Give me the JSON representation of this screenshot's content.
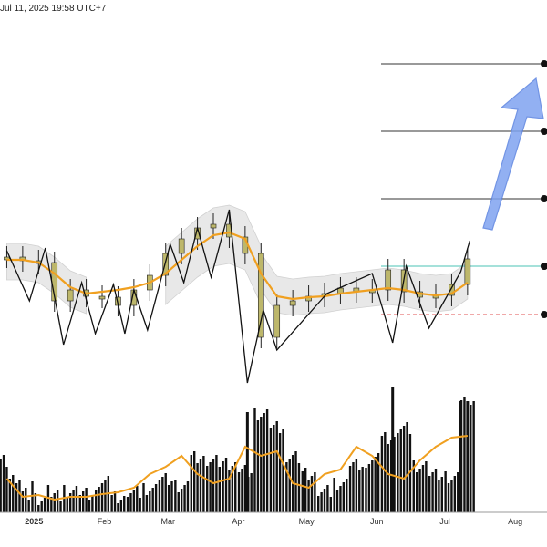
{
  "header": {
    "timestamp": "Jul 11, 2025 19:58 UTC+7"
  },
  "chart_data": {
    "type": "candlestick",
    "title": "",
    "x_axis": {
      "labels": [
        "2025",
        "Feb",
        "Mar",
        "Apr",
        "May",
        "Jun",
        "Jul",
        "Aug"
      ],
      "start_date": "2024-12-15",
      "end_date": "2025-08-15"
    },
    "grid": false,
    "colors": {
      "candle_body": "#bdb76b",
      "candle_wick": "#222222",
      "moving_average": "#f0a020",
      "band_fill": "#e6e6e6",
      "zigzag": "#111111",
      "target_lines": "#333333",
      "support_line": "#6fcfc4",
      "stop_line": "#e05050",
      "projection_arrow": "#7fa3f0",
      "volume_bar": "#111111",
      "volume_ma": "#f0a020"
    },
    "price_series": {
      "name": "Price",
      "x": [
        "2024-12-20",
        "2024-12-27",
        "2025-01-03",
        "2025-01-10",
        "2025-01-17",
        "2025-01-24",
        "2025-01-31",
        "2025-02-07",
        "2025-02-14",
        "2025-02-21",
        "2025-02-28",
        "2025-03-07",
        "2025-03-14",
        "2025-03-21",
        "2025-03-28",
        "2025-04-04",
        "2025-04-11",
        "2025-04-18",
        "2025-04-25",
        "2025-05-02",
        "2025-05-09",
        "2025-05-16",
        "2025-05-23",
        "2025-05-30",
        "2025-06-06",
        "2025-06-13",
        "2025-06-20",
        "2025-06-27",
        "2025-07-04",
        "2025-07-11"
      ],
      "values": [
        282,
        286,
        288,
        330,
        318,
        325,
        326,
        335,
        318,
        302,
        278,
        262,
        250,
        246,
        260,
        278,
        370,
        335,
        330,
        325,
        322,
        316,
        320,
        318,
        296,
        320,
        326,
        324,
        312,
        284
      ]
    },
    "moving_average": {
      "name": "MA",
      "values": [
        285,
        285,
        288,
        300,
        315,
        322,
        320,
        318,
        315,
        310,
        300,
        285,
        270,
        258,
        255,
        262,
        300,
        325,
        328,
        326,
        325,
        322,
        320,
        318,
        316,
        318,
        322,
        324,
        322,
        310
      ]
    },
    "zigzag_pivots": [
      {
        "x": "2024-12-20",
        "y": 275
      },
      {
        "x": "2024-12-30",
        "y": 330
      },
      {
        "x": "2025-01-06",
        "y": 272
      },
      {
        "x": "2025-01-14",
        "y": 378
      },
      {
        "x": "2025-01-22",
        "y": 310
      },
      {
        "x": "2025-01-28",
        "y": 366
      },
      {
        "x": "2025-02-05",
        "y": 312
      },
      {
        "x": "2025-02-10",
        "y": 366
      },
      {
        "x": "2025-02-14",
        "y": 318
      },
      {
        "x": "2025-02-20",
        "y": 362
      },
      {
        "x": "2025-03-02",
        "y": 268
      },
      {
        "x": "2025-03-08",
        "y": 310
      },
      {
        "x": "2025-03-14",
        "y": 250
      },
      {
        "x": "2025-03-20",
        "y": 304
      },
      {
        "x": "2025-03-28",
        "y": 230
      },
      {
        "x": "2025-04-05",
        "y": 420
      },
      {
        "x": "2025-04-12",
        "y": 340
      },
      {
        "x": "2025-04-18",
        "y": 384
      },
      {
        "x": "2025-05-10",
        "y": 322
      },
      {
        "x": "2025-05-30",
        "y": 300
      },
      {
        "x": "2025-06-08",
        "y": 376
      },
      {
        "x": "2025-06-14",
        "y": 292
      },
      {
        "x": "2025-06-24",
        "y": 360
      },
      {
        "x": "2025-07-08",
        "y": 298
      },
      {
        "x": "2025-07-12",
        "y": 264
      }
    ],
    "target_levels": [
      70,
      144,
      218,
      292
    ],
    "support_level": 292,
    "stop_level": 345,
    "volume": {
      "values": [
        520,
        540,
        548,
        545,
        538,
        542,
        530,
        545,
        540,
        535,
        525,
        535,
        500,
        505,
        510,
        515,
        455,
        470,
        500,
        520,
        540,
        530,
        510,
        505,
        480,
        470,
        510,
        520,
        525,
        440
      ],
      "ma_values": [
        525,
        545,
        543,
        548,
        545,
        545,
        542,
        540,
        535,
        520,
        512,
        500,
        520,
        530,
        525,
        490,
        500,
        495,
        530,
        535,
        520,
        515,
        490,
        500,
        520,
        525,
        505,
        490,
        480,
        478
      ]
    }
  }
}
